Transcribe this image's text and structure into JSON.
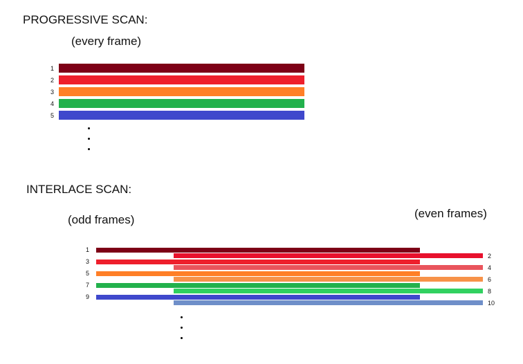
{
  "progressive": {
    "title": "PROGRESSIVE SCAN:",
    "subtitle": "(every frame)",
    "lines": [
      {
        "label": "1",
        "color": "#7d0016"
      },
      {
        "label": "2",
        "color": "#ee1f2c"
      },
      {
        "label": "3",
        "color": "#ff7f27"
      },
      {
        "label": "4",
        "color": "#22b14c"
      },
      {
        "label": "5",
        "color": "#3f48cc"
      }
    ]
  },
  "interlace": {
    "title": "INTERLACE SCAN:",
    "odd_label": "(odd frames)",
    "even_label": "(even frames)",
    "odd_lines": [
      {
        "label": "1",
        "color": "#7d0016"
      },
      {
        "label": "3",
        "color": "#ee1f2c"
      },
      {
        "label": "5",
        "color": "#ff7f27"
      },
      {
        "label": "7",
        "color": "#22b14c"
      },
      {
        "label": "9",
        "color": "#3f48cc"
      }
    ],
    "even_lines": [
      {
        "label": "2",
        "color": "#e8112d"
      },
      {
        "label": "4",
        "color": "#e9545c"
      },
      {
        "label": "6",
        "color": "#f79249"
      },
      {
        "label": "8",
        "color": "#31d160"
      },
      {
        "label": "10",
        "color": "#6f8fc9"
      }
    ]
  }
}
